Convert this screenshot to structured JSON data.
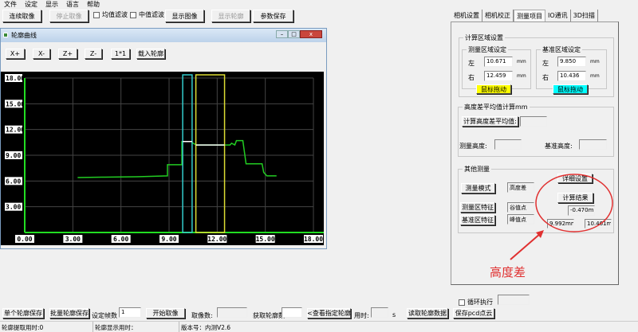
{
  "menu": [
    "文件",
    "设定",
    "显示",
    "语言",
    "帮助"
  ],
  "toolbar": {
    "continuous": "连续取像",
    "stop": "停止取像",
    "mean_filter": "均值滤波",
    "median_filter": "中值滤波",
    "show_image": "显示图像",
    "show_profile": "显示轮廓",
    "save_params": "参数保存"
  },
  "profile_window": {
    "title": "轮廓曲线",
    "buttons": [
      "X+",
      "X-",
      "Z+",
      "Z-",
      "1*1",
      "载入轮廓"
    ]
  },
  "chart_data": {
    "type": "line",
    "xlim": [
      0,
      18
    ],
    "ylim": [
      0,
      18
    ],
    "grid": true,
    "x_ticks": [
      "0.00",
      "3.00",
      "6.00",
      "9.00",
      "12.00",
      "15.00",
      "18.00"
    ],
    "y_ticks": [
      "3.00",
      "6.00",
      "9.00",
      "12.00",
      "15.00",
      "18.00"
    ],
    "series": [
      {
        "color": "#22cc22",
        "points": [
          [
            3.3,
            6.4
          ],
          [
            5,
            6.45
          ],
          [
            7,
            6.5
          ],
          [
            8.9,
            6.6
          ],
          [
            8.9,
            7.9
          ],
          [
            9.8,
            7.9
          ],
          [
            9.8,
            10.6
          ],
          [
            10.4,
            10.6
          ],
          [
            10.5,
            10.4
          ],
          [
            10.7,
            10.2
          ],
          [
            12.8,
            10.2
          ],
          [
            12.9,
            10.4
          ],
          [
            13.1,
            10.2
          ],
          [
            13.2,
            10.7
          ],
          [
            13.6,
            10.7
          ],
          [
            13.8,
            8.0
          ],
          [
            14.8,
            8.0
          ],
          [
            14.9,
            7.0
          ],
          [
            15.1,
            6.6
          ],
          [
            15.7,
            6.6
          ]
        ]
      }
    ],
    "regions": [
      {
        "color": "#33cccc",
        "x": [
          9.85,
          10.436
        ]
      },
      {
        "color": "#dddd33",
        "x": [
          10.671,
          12.459
        ]
      }
    ]
  },
  "tabs": [
    "相机设置",
    "相机校正",
    "测量项目",
    "IO通讯",
    "3D扫描"
  ],
  "active_tab": 2,
  "calc_area": {
    "title": "计算区域设置",
    "measure": {
      "title": "测量区域设定",
      "left_label": "左",
      "left": "10.671",
      "right_label": "右",
      "right": "12.459",
      "unit": "mm",
      "drag": "鼠标拖动",
      "color": "#ffff00"
    },
    "base": {
      "title": "基准区域设定",
      "left_label": "左",
      "left": "9.850",
      "right_label": "右",
      "right": "10.436",
      "unit": "mm",
      "drag": "鼠标拖动",
      "color": "#00ffff"
    }
  },
  "avg": {
    "title": "高度差平均值计算mm",
    "button": "计算高度差平均值:",
    "measure_height": "测量高度:",
    "base_height": "基准高度:"
  },
  "other": {
    "title": "其他测量",
    "mode_btn": "测量模式",
    "mode": "高度差",
    "detail_btn": "详细设置",
    "calc_btn": "计算结果",
    "result": "-0.470mm",
    "measure_feature_btn": "测量区特征",
    "measure_feature": "谷值点",
    "base_feature_btn": "基准区特征",
    "base_feature": "峰值点",
    "measure_value": "9.992mm",
    "base_value": "10.461mm"
  },
  "annotation": {
    "text": "高度差",
    "color": "#e03030"
  },
  "bottom": {
    "loop": "循环执行",
    "single_save": "单个轮廓保存",
    "batch_save": "批量轮廓保存",
    "frames_label": "设定帧数",
    "frames": "1",
    "start": "开始取像",
    "count_label": "取像数:",
    "get_count_label": "获取轮廓数",
    "view": "<查看指定轮廓",
    "time_label": "用时:",
    "sec": "s",
    "read": "读取轮廓数据",
    "save_pcd": "保存pcd点云"
  },
  "status": {
    "extract": "轮廓提取用时:0",
    "display": "轮廓显示用时：",
    "version": "版本号：内测V2.6"
  }
}
